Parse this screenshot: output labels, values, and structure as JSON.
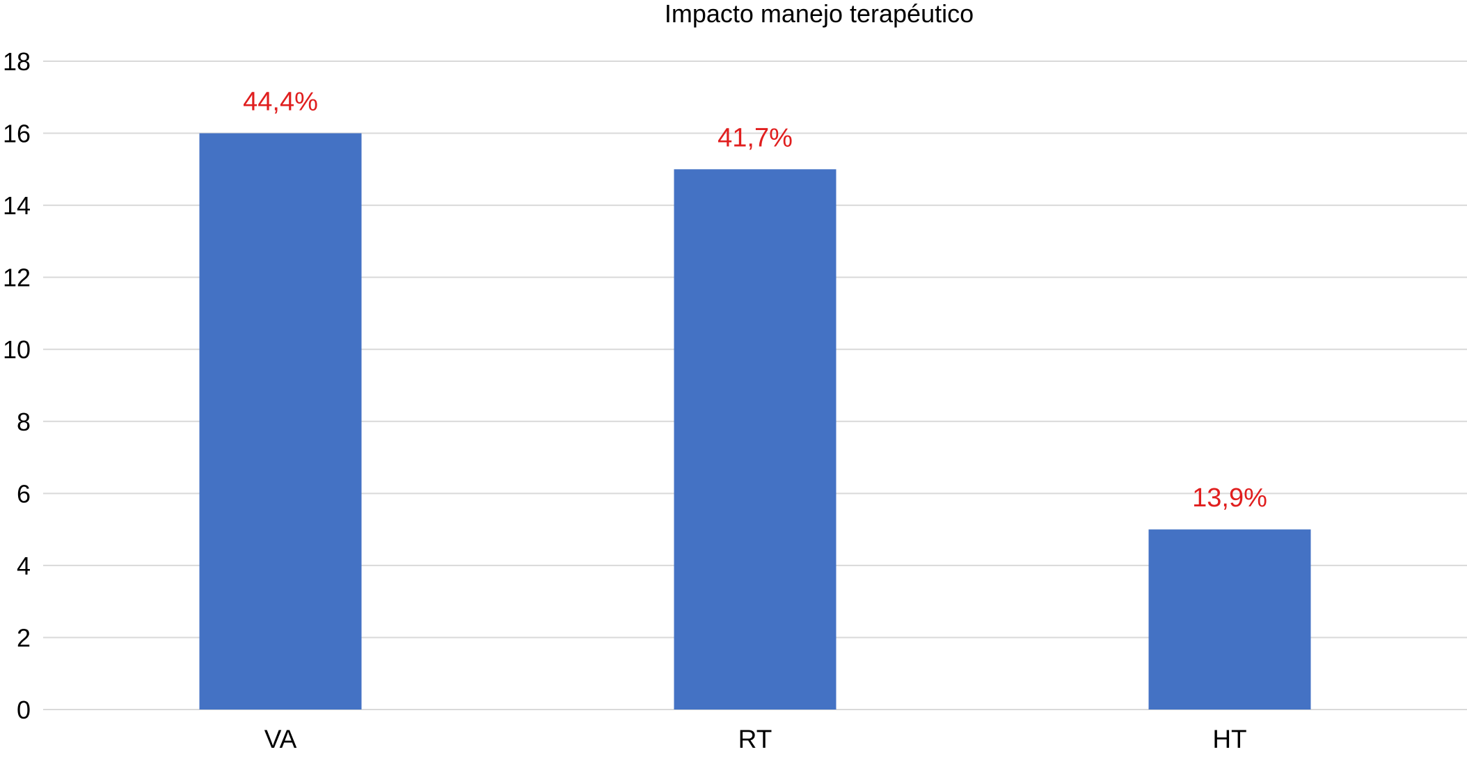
{
  "chart_data": {
    "type": "bar",
    "title": "Impacto manejo terapéutico",
    "xlabel": "",
    "ylabel": "",
    "categories": [
      "VA",
      "RT",
      "HT"
    ],
    "values": [
      16,
      15,
      5
    ],
    "data_labels": [
      "44,4%",
      "41,7%",
      "13,9%"
    ],
    "ylim": [
      0,
      18
    ],
    "yticks": [
      0,
      2,
      4,
      6,
      8,
      10,
      12,
      14,
      16,
      18
    ],
    "grid": true,
    "legend": "none",
    "colors": {
      "bar": "#4472c4",
      "data_label": "#e01e1e",
      "gridline": "#d9d9d9",
      "text": "#000000"
    }
  }
}
